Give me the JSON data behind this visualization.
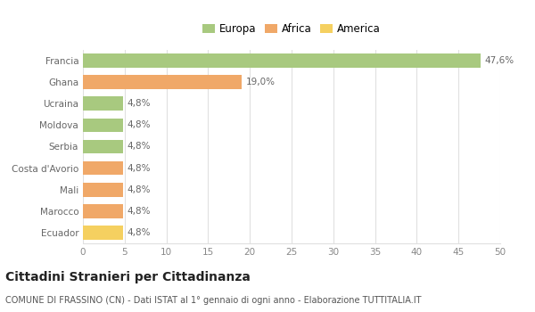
{
  "categories": [
    "Francia",
    "Ghana",
    "Ucraina",
    "Moldova",
    "Serbia",
    "Costa d'Avorio",
    "Mali",
    "Marocco",
    "Ecuador"
  ],
  "values": [
    47.6,
    19.0,
    4.8,
    4.8,
    4.8,
    4.8,
    4.8,
    4.8,
    4.8
  ],
  "labels": [
    "47,6%",
    "19,0%",
    "4,8%",
    "4,8%",
    "4,8%",
    "4,8%",
    "4,8%",
    "4,8%",
    "4,8%"
  ],
  "colors": [
    "#a8c97f",
    "#f0a868",
    "#a8c97f",
    "#a8c97f",
    "#a8c97f",
    "#f0a868",
    "#f0a868",
    "#f0a868",
    "#f5d060"
  ],
  "legend": [
    {
      "label": "Europa",
      "color": "#a8c97f"
    },
    {
      "label": "Africa",
      "color": "#f0a868"
    },
    {
      "label": "America",
      "color": "#f5d060"
    }
  ],
  "xlim": [
    0,
    50
  ],
  "xticks": [
    0,
    5,
    10,
    15,
    20,
    25,
    30,
    35,
    40,
    45,
    50
  ],
  "title": "Cittadini Stranieri per Cittadinanza",
  "subtitle": "COMUNE DI FRASSINO (CN) - Dati ISTAT al 1° gennaio di ogni anno - Elaborazione TUTTITALIA.IT",
  "bg_color": "#ffffff",
  "grid_color": "#e0e0e0",
  "bar_height": 0.65,
  "title_fontsize": 10,
  "subtitle_fontsize": 7,
  "label_fontsize": 7.5,
  "tick_fontsize": 7.5,
  "legend_fontsize": 8.5
}
